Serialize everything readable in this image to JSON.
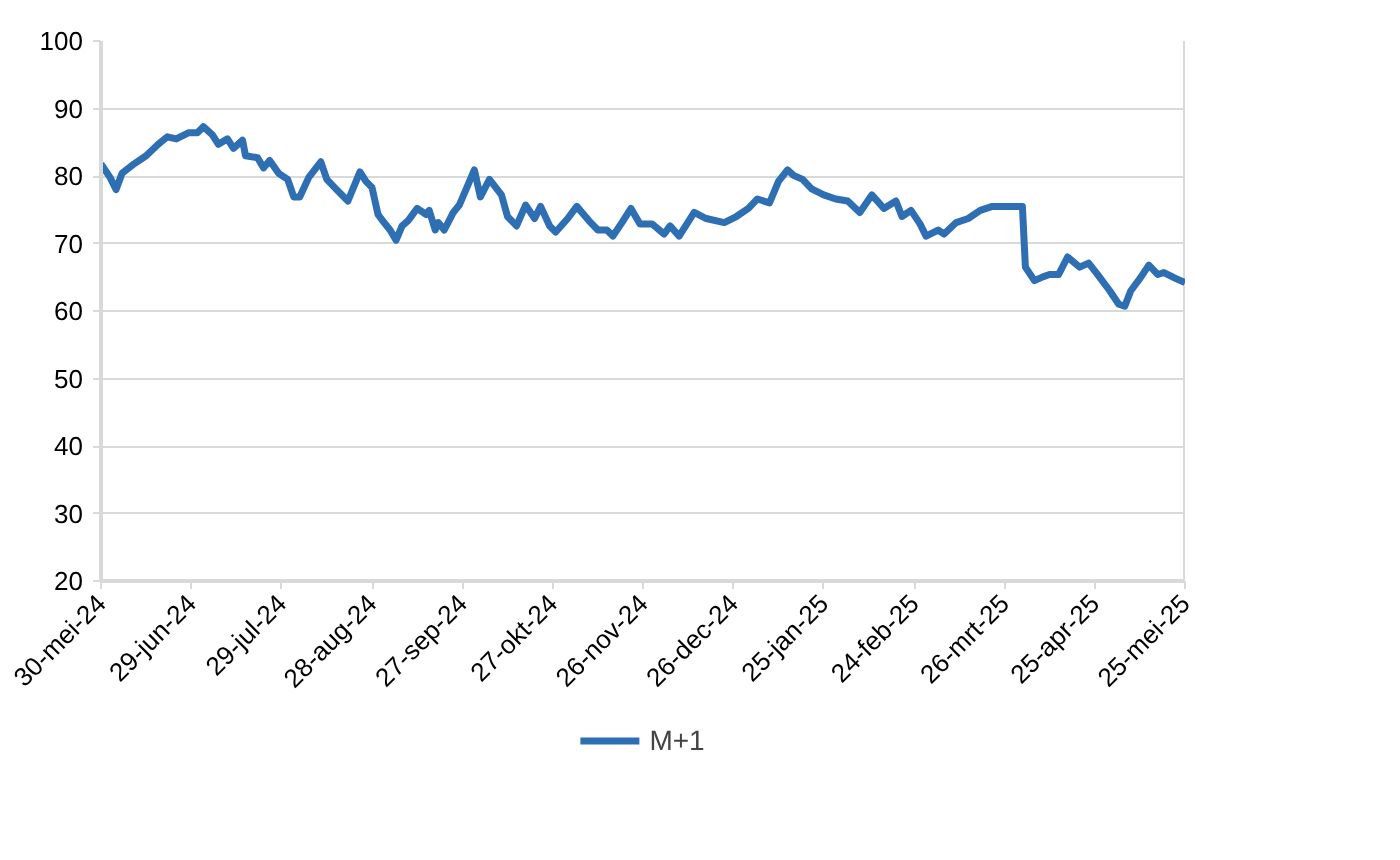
{
  "chart_data": {
    "type": "line",
    "x": [
      "2024-05-30",
      "2024-06-02",
      "2024-06-04",
      "2024-06-06",
      "2024-06-10",
      "2024-06-14",
      "2024-06-18",
      "2024-06-21",
      "2024-06-24",
      "2024-06-28",
      "2024-07-01",
      "2024-07-03",
      "2024-07-06",
      "2024-07-08",
      "2024-07-11",
      "2024-07-13",
      "2024-07-16",
      "2024-07-17",
      "2024-07-21",
      "2024-07-23",
      "2024-07-25",
      "2024-07-28",
      "2024-07-31",
      "2024-08-02",
      "2024-08-04",
      "2024-08-07",
      "2024-08-11",
      "2024-08-13",
      "2024-08-16",
      "2024-08-20",
      "2024-08-24",
      "2024-08-26",
      "2024-08-28",
      "2024-08-30",
      "2024-09-01",
      "2024-09-03",
      "2024-09-05",
      "2024-09-07",
      "2024-09-09",
      "2024-09-12",
      "2024-09-15",
      "2024-09-16",
      "2024-09-18",
      "2024-09-19",
      "2024-09-21",
      "2024-09-24",
      "2024-09-26",
      "2024-10-01",
      "2024-10-03",
      "2024-10-06",
      "2024-10-10",
      "2024-10-12",
      "2024-10-15",
      "2024-10-18",
      "2024-10-21",
      "2024-10-23",
      "2024-10-26",
      "2024-10-28",
      "2024-11-01",
      "2024-11-04",
      "2024-11-08",
      "2024-11-11",
      "2024-11-14",
      "2024-11-16",
      "2024-11-19",
      "2024-11-22",
      "2024-11-25",
      "2024-11-29",
      "2024-12-03",
      "2024-12-05",
      "2024-12-08",
      "2024-12-13",
      "2024-12-17",
      "2024-12-23",
      "2024-12-27",
      "2024-12-31",
      "2025-01-03",
      "2025-01-07",
      "2025-01-10",
      "2025-01-13",
      "2025-01-15",
      "2025-01-18",
      "2025-01-21",
      "2025-01-25",
      "2025-01-29",
      "2025-02-02",
      "2025-02-06",
      "2025-02-10",
      "2025-02-14",
      "2025-02-18",
      "2025-02-20",
      "2025-02-23",
      "2025-02-26",
      "2025-02-28",
      "2025-03-04",
      "2025-03-06",
      "2025-03-10",
      "2025-03-14",
      "2025-03-18",
      "2025-03-22",
      "2025-04-01",
      "2025-04-02",
      "2025-04-05",
      "2025-04-08",
      "2025-04-10",
      "2025-04-13",
      "2025-04-16",
      "2025-04-20",
      "2025-04-23",
      "2025-04-26",
      "2025-04-30",
      "2025-05-03",
      "2025-05-05",
      "2025-05-07",
      "2025-05-10",
      "2025-05-13",
      "2025-05-16",
      "2025-05-18",
      "2025-05-22",
      "2025-05-25"
    ],
    "series": [
      {
        "name": "M+1",
        "color": "#2e6fb4",
        "values": [
          81.8,
          79.8,
          78.0,
          80.4,
          81.8,
          83.0,
          84.7,
          85.8,
          85.5,
          86.4,
          86.4,
          87.3,
          86.1,
          84.7,
          85.5,
          84.1,
          85.3,
          83.0,
          82.7,
          81.2,
          82.3,
          80.4,
          79.5,
          76.9,
          76.9,
          79.8,
          82.1,
          79.5,
          78.1,
          76.3,
          80.6,
          79.2,
          78.3,
          74.3,
          73.1,
          72.0,
          70.5,
          72.6,
          73.4,
          75.2,
          74.3,
          74.9,
          72.0,
          73.1,
          72.0,
          74.6,
          75.7,
          80.9,
          76.9,
          79.5,
          77.2,
          74.0,
          72.6,
          75.7,
          73.7,
          75.5,
          72.6,
          71.7,
          73.7,
          75.5,
          73.4,
          72.0,
          72.0,
          71.1,
          73.1,
          75.2,
          72.9,
          72.9,
          71.4,
          72.6,
          71.1,
          74.6,
          73.7,
          73.1,
          74.0,
          75.2,
          76.6,
          76.0,
          79.2,
          80.9,
          80.1,
          79.5,
          78.1,
          77.2,
          76.6,
          76.3,
          74.6,
          77.2,
          75.2,
          76.3,
          74.0,
          74.9,
          72.9,
          71.1,
          72.0,
          71.4,
          73.1,
          73.7,
          74.9,
          75.5,
          75.5,
          66.5,
          64.5,
          65.1,
          65.4,
          65.4,
          68.0,
          66.5,
          67.1,
          65.4,
          63.0,
          61.0,
          60.7,
          63.0,
          64.8,
          66.8,
          65.4,
          65.7,
          64.8,
          64.2
        ]
      }
    ],
    "xlim": [
      "2024-05-30",
      "2025-05-25"
    ],
    "xticks": [
      {
        "value": "2024-05-30",
        "label": "30-mei-24"
      },
      {
        "value": "2024-06-29",
        "label": "29-jun-24"
      },
      {
        "value": "2024-07-29",
        "label": "29-jul-24"
      },
      {
        "value": "2024-08-28",
        "label": "28-aug-24"
      },
      {
        "value": "2024-09-27",
        "label": "27-sep-24"
      },
      {
        "value": "2024-10-27",
        "label": "27-okt-24"
      },
      {
        "value": "2024-11-26",
        "label": "26-nov-24"
      },
      {
        "value": "2024-12-26",
        "label": "26-dec-24"
      },
      {
        "value": "2025-01-25",
        "label": "25-jan-25"
      },
      {
        "value": "2025-02-24",
        "label": "24-feb-25"
      },
      {
        "value": "2025-03-26",
        "label": "26-mrt-25"
      },
      {
        "value": "2025-04-25",
        "label": "25-apr-25"
      },
      {
        "value": "2025-05-25",
        "label": "25-mei-25"
      }
    ],
    "ylim": [
      20,
      100
    ],
    "yticks": [
      20,
      30,
      40,
      50,
      60,
      70,
      80,
      90,
      100
    ],
    "grid": "y",
    "legend": "bottom",
    "marker": "none",
    "line_style": "solid"
  }
}
